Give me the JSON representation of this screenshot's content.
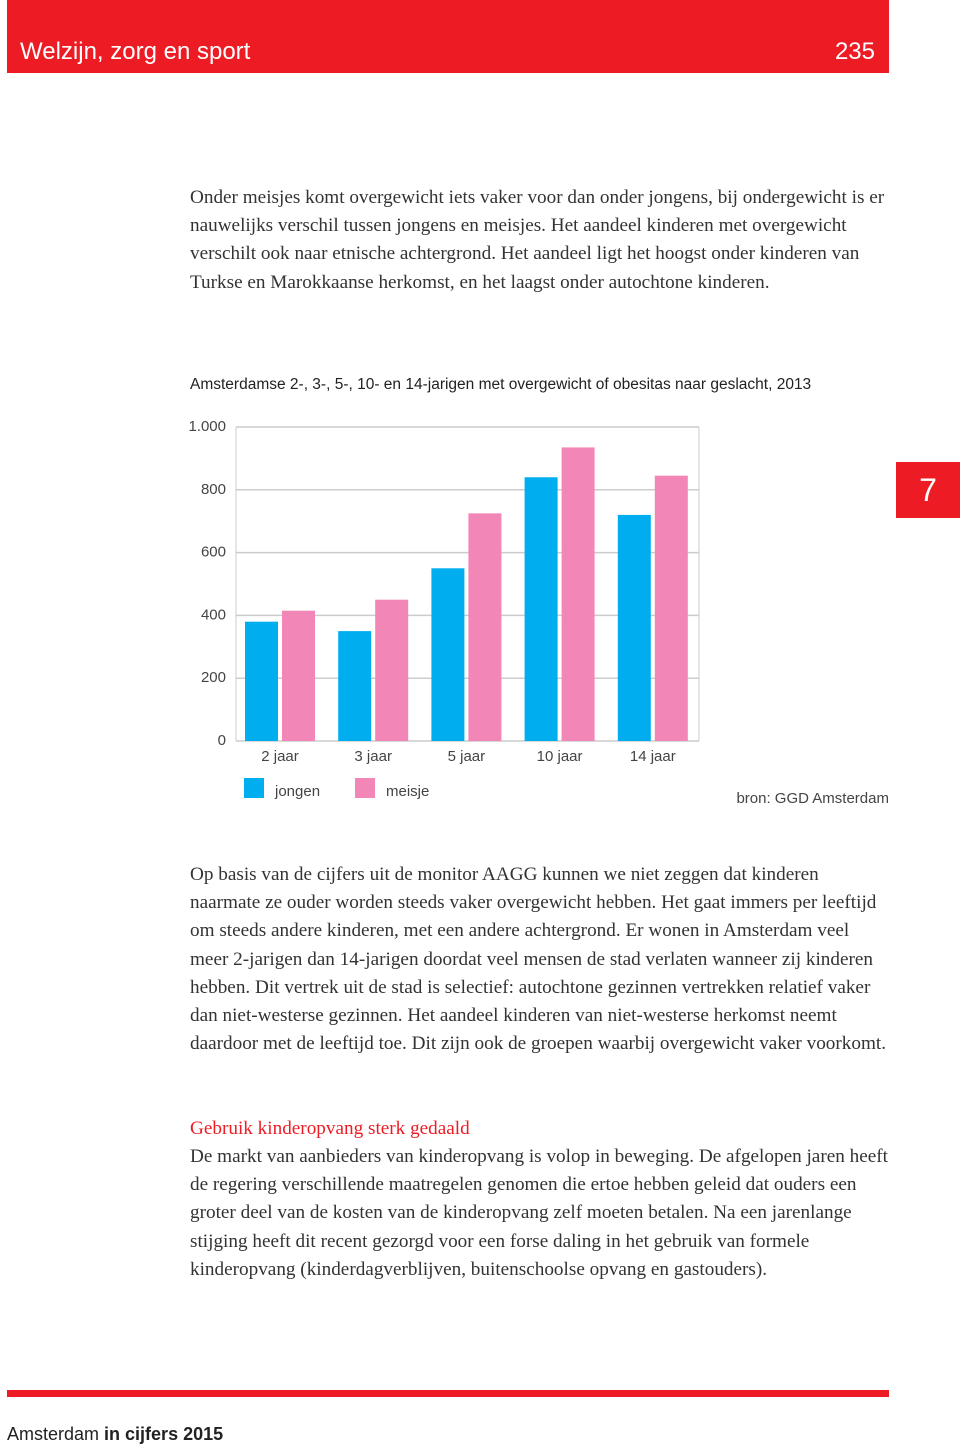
{
  "header": {
    "section": "Welzijn, zorg en sport",
    "page": "235"
  },
  "chapter": "7",
  "intro": "Onder meisjes komt overgewicht iets vaker voor dan onder jongens, bij ondergewicht is er nauwelijks verschil tussen jongens en meisjes. Het aandeel kinderen met overgewicht verschilt ook naar etnische achtergrond. Het aandeel ligt het hoogst onder kinderen van Turkse en Marokkaanse herkomst, en het laagst onder autochtone kinderen.",
  "chart_data": {
    "type": "bar",
    "title": "Amsterdamse 2-, 3-, 5-, 10- en 14-jarigen met overgewicht of obesitas naar geslacht, 2013",
    "categories": [
      "2 jaar",
      "3 jaar",
      "5 jaar",
      "10 jaar",
      "14 jaar"
    ],
    "series": [
      {
        "name": "jongen",
        "color": "#00aeef",
        "values": [
          380,
          350,
          550,
          840,
          720
        ]
      },
      {
        "name": "meisje",
        "color": "#f287b7",
        "values": [
          415,
          450,
          725,
          935,
          845
        ]
      }
    ],
    "ylim": [
      0,
      1000
    ],
    "yticks": [
      0,
      200,
      400,
      600,
      800,
      {
        "value": 1000,
        "label": "1.000"
      }
    ],
    "grid": true,
    "source": "bron: GGD Amsterdam"
  },
  "after_chart": "Op basis van de cijfers uit de monitor AAGG kunnen we niet zeggen dat kinderen naarmate ze ouder worden steeds vaker overgewicht hebben. Het gaat immers per leeftijd om steeds andere kinderen, met een andere achtergrond. Er wonen in Amsterdam veel meer 2-jarigen dan 14-jarigen doordat veel mensen de stad verlaten wanneer zij kinderen hebben. Dit vertrek uit de stad is selectief: autochtone gezinnen vertrekken relatief vaker dan niet-westerse gezinnen. Het aandeel kinderen van niet-westerse herkomst neemt daardoor met de leeftijd toe. Dit zijn ook de groepen waarbij overgewicht vaker voorkomt.",
  "section": {
    "heading": "Gebruik kinderopvang sterk gedaald",
    "text": "De markt van aanbieders van kinderopvang is volop in beweging. De afgelopen jaren heeft de regering verschillende maatregelen genomen die ertoe hebben geleid dat ouders een groter deel van de kosten van de kinderopvang zelf moeten betalen. Na een jarenlange stijging heeft dit recent gezorgd voor een forse daling in het gebruik van formele kinderopvang (kinderdagverblijven, buitenschoolse opvang en gastouders)."
  },
  "footer": {
    "city": "Amsterdam",
    "publication": "in cijfers 2015"
  }
}
